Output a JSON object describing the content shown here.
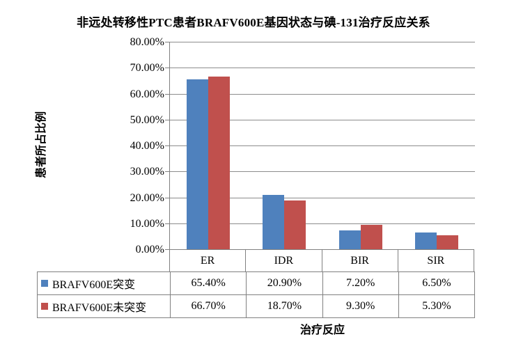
{
  "chart_data": {
    "type": "bar",
    "title": "非远处转移性PTC患者BRAFV600E基因状态与碘-131治疗反应关系",
    "xlabel": "治疗反应",
    "ylabel": "患者所占比例",
    "categories": [
      "ER",
      "IDR",
      "BIR",
      "SIR"
    ],
    "series": [
      {
        "name": "BRAFV600E突变",
        "color": "#4F81BD",
        "values": [
          65.4,
          20.9,
          7.2,
          6.5
        ],
        "value_labels": [
          "65.40%",
          "20.90%",
          "7.20%",
          "6.50%"
        ]
      },
      {
        "name": "BRAFV600E未突变",
        "color": "#C0504D",
        "values": [
          66.7,
          18.7,
          9.3,
          5.3
        ],
        "value_labels": [
          "66.70%",
          "18.70%",
          "9.30%",
          "5.30%"
        ]
      }
    ],
    "ylim": [
      0,
      80
    ],
    "ytick_step": 10,
    "ytick_labels": [
      "0.00%",
      "10.00%",
      "20.00%",
      "30.00%",
      "40.00%",
      "50.00%",
      "60.00%",
      "70.00%",
      "80.00%"
    ],
    "grid": true,
    "legend_position": "data-table-left"
  },
  "colors": {
    "series_blue": "#4F81BD",
    "series_red": "#C0504D",
    "gridline": "#8C8C8C",
    "border": "#808080",
    "text": "#000000",
    "background": "#FFFFFF"
  }
}
